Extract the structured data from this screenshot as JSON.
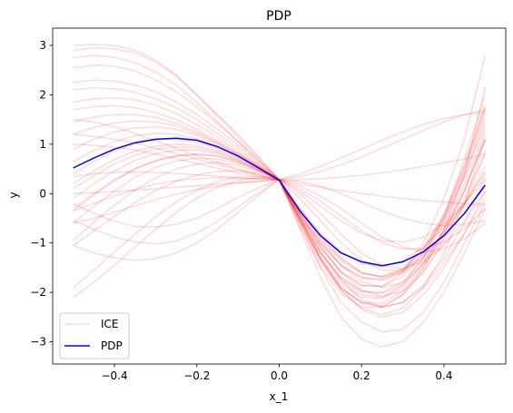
{
  "chart_data": {
    "type": "line",
    "title": "PDP",
    "xlabel": "x_1",
    "ylabel": "y",
    "xlim": [
      -0.55,
      0.55
    ],
    "ylim": [
      -3.45,
      3.35
    ],
    "xticks": [
      -0.4,
      -0.2,
      0.0,
      0.2,
      0.4
    ],
    "xtick_labels": [
      "−0.4",
      "−0.2",
      "0.0",
      "0.2",
      "0.4"
    ],
    "yticks": [
      -3,
      -2,
      -1,
      0,
      1,
      2,
      3
    ],
    "ytick_labels": [
      "−3",
      "−2",
      "−1",
      "0",
      "1",
      "2",
      "3"
    ],
    "grid": false,
    "legend": {
      "placement": "lower-left",
      "entries": [
        "ICE",
        "PDP"
      ]
    },
    "colors": {
      "ice": "#ff0000",
      "pdp": "#0000ff"
    },
    "series": [
      {
        "name": "PDP",
        "x": [
          -0.5,
          -0.45,
          -0.4,
          -0.35,
          -0.3,
          -0.25,
          -0.2,
          -0.15,
          -0.1,
          -0.05,
          0.0,
          0.05,
          0.1,
          0.15,
          0.2,
          0.25,
          0.3,
          0.35,
          0.4,
          0.45,
          0.5
        ],
        "y": [
          0.52,
          0.72,
          0.9,
          1.03,
          1.1,
          1.12,
          1.08,
          0.95,
          0.76,
          0.52,
          0.27,
          -0.35,
          -0.85,
          -1.2,
          -1.38,
          -1.46,
          -1.38,
          -1.18,
          -0.85,
          -0.4,
          0.17
        ]
      }
    ],
    "ice_series": {
      "name": "ICE",
      "x": [
        -0.5,
        -0.45,
        -0.4,
        -0.35,
        -0.3,
        -0.25,
        -0.2,
        -0.15,
        -0.1,
        -0.05,
        0.0,
        0.05,
        0.1,
        0.15,
        0.2,
        0.25,
        0.3,
        0.35,
        0.4,
        0.45,
        0.5
      ],
      "y": [
        [
          3.0,
          3.02,
          3.0,
          2.9,
          2.7,
          2.4,
          2.0,
          1.6,
          1.2,
          0.75,
          0.28,
          -0.5,
          -1.3,
          -1.9,
          -2.2,
          -2.3,
          -2.2,
          -1.9,
          -1.4,
          -0.8,
          -0.1
        ],
        [
          2.9,
          2.95,
          2.93,
          2.85,
          2.66,
          2.38,
          2.0,
          1.58,
          1.15,
          0.72,
          0.28,
          -0.6,
          -1.5,
          -2.2,
          -2.6,
          -2.8,
          -2.75,
          -2.4,
          -1.8,
          -1.0,
          -0.2
        ],
        [
          2.75,
          2.8,
          2.76,
          2.65,
          2.46,
          2.2,
          1.85,
          1.45,
          1.05,
          0.68,
          0.28,
          -0.7,
          -1.7,
          -2.5,
          -2.95,
          -3.1,
          -3.0,
          -2.6,
          -2.0,
          -1.2,
          -0.3
        ],
        [
          2.25,
          2.3,
          2.28,
          2.2,
          2.06,
          1.86,
          1.6,
          1.3,
          0.98,
          0.64,
          0.28,
          -0.5,
          -1.3,
          -1.95,
          -2.35,
          -2.5,
          -2.4,
          -2.05,
          -1.5,
          -0.8,
          0.05
        ],
        [
          2.1,
          2.14,
          2.12,
          2.05,
          1.92,
          1.74,
          1.5,
          1.22,
          0.92,
          0.6,
          0.28,
          -0.45,
          -1.15,
          -1.75,
          -2.15,
          -2.3,
          -2.2,
          -1.85,
          -1.3,
          -0.6,
          0.3
        ],
        [
          1.7,
          1.76,
          1.78,
          1.74,
          1.64,
          1.5,
          1.3,
          1.07,
          0.82,
          0.56,
          0.28,
          -0.4,
          -1.05,
          -1.6,
          -1.95,
          -2.08,
          -1.98,
          -1.6,
          -1.0,
          -0.2,
          0.8
        ],
        [
          1.45,
          1.55,
          1.6,
          1.6,
          1.54,
          1.42,
          1.25,
          1.04,
          0.8,
          0.55,
          0.28,
          -0.35,
          -0.95,
          -1.45,
          -1.78,
          -1.9,
          -1.8,
          -1.4,
          -0.75,
          0.1,
          1.1
        ],
        [
          1.2,
          1.34,
          1.43,
          1.47,
          1.45,
          1.37,
          1.22,
          1.02,
          0.79,
          0.54,
          0.28,
          -0.3,
          -0.85,
          -1.3,
          -1.6,
          -1.7,
          -1.58,
          -1.2,
          -0.55,
          0.35,
          1.4
        ],
        [
          0.9,
          1.1,
          1.25,
          1.33,
          1.35,
          1.3,
          1.18,
          1.0,
          0.78,
          0.54,
          0.28,
          -0.32,
          -0.88,
          -1.32,
          -1.6,
          -1.68,
          -1.54,
          -1.15,
          -0.5,
          0.45,
          1.6
        ],
        [
          0.65,
          0.87,
          1.05,
          1.17,
          1.22,
          1.2,
          1.11,
          0.96,
          0.76,
          0.53,
          0.28,
          -0.35,
          -0.92,
          -1.36,
          -1.62,
          -1.68,
          -1.52,
          -1.1,
          -0.45,
          0.55,
          1.75
        ],
        [
          0.4,
          0.65,
          0.86,
          1.01,
          1.09,
          1.1,
          1.04,
          0.91,
          0.73,
          0.51,
          0.28,
          -0.4,
          -1.0,
          -1.45,
          -1.7,
          -1.74,
          -1.56,
          -1.12,
          -0.42,
          0.6,
          1.8
        ],
        [
          0.2,
          0.46,
          0.69,
          0.86,
          0.96,
          1.0,
          0.97,
          0.87,
          0.71,
          0.5,
          0.28,
          -0.45,
          -1.1,
          -1.58,
          -1.85,
          -1.88,
          -1.68,
          -1.22,
          -0.5,
          0.5,
          1.7
        ],
        [
          -0.1,
          0.2,
          0.46,
          0.67,
          0.81,
          0.88,
          0.88,
          0.81,
          0.67,
          0.48,
          0.28,
          -0.5,
          -1.2,
          -1.7,
          -1.98,
          -2.0,
          -1.78,
          -1.3,
          -0.6,
          0.35,
          1.5
        ],
        [
          -0.35,
          -0.03,
          0.26,
          0.5,
          0.67,
          0.77,
          0.8,
          0.76,
          0.64,
          0.47,
          0.28,
          -0.55,
          -1.3,
          -1.82,
          -2.1,
          -2.12,
          -1.9,
          -1.42,
          -0.72,
          0.2,
          1.3
        ],
        [
          -0.6,
          -0.26,
          0.06,
          0.33,
          0.53,
          0.66,
          0.72,
          0.7,
          0.61,
          0.46,
          0.28,
          -0.6,
          -1.38,
          -1.92,
          -2.2,
          -2.22,
          -1.98,
          -1.5,
          -0.82,
          0.05,
          1.1
        ],
        [
          -0.95,
          -0.58,
          -0.24,
          0.07,
          0.32,
          0.5,
          0.6,
          0.63,
          0.57,
          0.44,
          0.28,
          -0.68,
          -1.48,
          -2.02,
          -2.3,
          -2.3,
          -2.05,
          -1.58,
          -0.92,
          -0.1,
          0.85
        ],
        [
          -1.05,
          -0.75,
          -0.46,
          -0.18,
          0.06,
          0.25,
          0.38,
          0.45,
          0.46,
          0.4,
          0.28,
          -0.5,
          -1.2,
          -1.7,
          -1.98,
          -2.02,
          -1.84,
          -1.44,
          -0.88,
          -0.2,
          0.55
        ],
        [
          -1.9,
          -1.55,
          -1.18,
          -0.82,
          -0.47,
          -0.17,
          0.07,
          0.24,
          0.34,
          0.35,
          0.28,
          -0.4,
          -1.0,
          -1.45,
          -1.7,
          -1.76,
          -1.6,
          -1.26,
          -0.78,
          -0.2,
          0.45
        ],
        [
          -2.1,
          -1.8,
          -1.45,
          -1.08,
          -0.72,
          -0.38,
          -0.09,
          0.13,
          0.27,
          0.32,
          0.28,
          -0.3,
          -0.8,
          -1.18,
          -1.42,
          -1.48,
          -1.36,
          -1.08,
          -0.68,
          -0.2,
          0.3
        ],
        [
          -1.05,
          -1.2,
          -1.3,
          -1.35,
          -1.32,
          -1.2,
          -1.0,
          -0.72,
          -0.38,
          -0.03,
          0.28,
          0.0,
          -0.4,
          -0.82,
          -1.2,
          -1.45,
          -1.52,
          -1.38,
          -1.05,
          -0.55,
          0.05
        ],
        [
          -0.55,
          -0.72,
          -0.88,
          -0.98,
          -1.02,
          -0.96,
          -0.8,
          -0.56,
          -0.27,
          0.02,
          0.28,
          0.15,
          -0.05,
          -0.3,
          -0.6,
          -0.88,
          -1.08,
          -1.18,
          -1.12,
          -0.92,
          -0.6
        ],
        [
          -0.2,
          -0.4,
          -0.56,
          -0.66,
          -0.68,
          -0.62,
          -0.5,
          -0.3,
          -0.08,
          0.12,
          0.28,
          0.1,
          -0.15,
          -0.45,
          -0.75,
          -1.0,
          -1.12,
          -1.12,
          -0.98,
          -0.7,
          -0.3
        ],
        [
          1.5,
          1.45,
          1.35,
          1.22,
          1.07,
          0.92,
          0.77,
          0.63,
          0.5,
          0.38,
          0.28,
          0.2,
          0.13,
          0.06,
          0.0,
          -0.05,
          -0.1,
          -0.14,
          -0.17,
          -0.2,
          -0.22
        ],
        [
          1.2,
          1.16,
          1.1,
          1.02,
          0.92,
          0.81,
          0.7,
          0.59,
          0.48,
          0.37,
          0.28,
          0.28,
          0.3,
          0.33,
          0.37,
          0.42,
          0.48,
          0.55,
          0.62,
          0.7,
          0.8
        ],
        [
          0.35,
          0.4,
          0.43,
          0.44,
          0.43,
          0.41,
          0.38,
          0.35,
          0.32,
          0.3,
          0.28,
          0.35,
          0.45,
          0.58,
          0.74,
          0.92,
          1.1,
          1.28,
          1.45,
          1.6,
          1.7
        ],
        [
          -0.6,
          -0.5,
          -0.38,
          -0.25,
          -0.12,
          -0.01,
          0.08,
          0.15,
          0.21,
          0.25,
          0.28,
          0.4,
          0.55,
          0.72,
          0.9,
          1.08,
          1.25,
          1.4,
          1.52,
          1.6,
          1.65
        ],
        [
          0.0,
          0.02,
          0.04,
          0.07,
          0.1,
          0.13,
          0.16,
          0.19,
          0.22,
          0.25,
          0.28,
          0.25,
          0.15,
          0.0,
          -0.18,
          -0.35,
          -0.5,
          -0.6,
          -0.65,
          -0.62,
          -0.55
        ],
        [
          1.0,
          0.98,
          0.94,
          0.88,
          0.8,
          0.71,
          0.61,
          0.51,
          0.42,
          0.34,
          0.28,
          0.05,
          -0.25,
          -0.55,
          -0.8,
          -0.95,
          -0.98,
          -0.88,
          -0.62,
          -0.2,
          0.4
        ],
        [
          -0.35,
          -0.2,
          -0.05,
          0.08,
          0.19,
          0.26,
          0.3,
          0.32,
          0.31,
          0.3,
          0.28,
          -0.1,
          -0.55,
          -1.0,
          -1.35,
          -1.55,
          -1.55,
          -1.3,
          -0.8,
          0.05,
          1.2
        ],
        [
          2.55,
          2.6,
          2.58,
          2.48,
          2.3,
          2.06,
          1.76,
          1.42,
          1.06,
          0.67,
          0.28,
          -0.55,
          -1.35,
          -1.95,
          -2.32,
          -2.45,
          -2.32,
          -1.9,
          -1.2,
          -0.2,
          1.1
        ],
        [
          1.85,
          1.92,
          1.94,
          1.9,
          1.79,
          1.62,
          1.4,
          1.14,
          0.86,
          0.57,
          0.28,
          -0.48,
          -1.2,
          -1.75,
          -2.05,
          -2.1,
          -1.85,
          -1.3,
          -0.45,
          0.7,
          2.0
        ],
        [
          0.1,
          0.36,
          0.6,
          0.78,
          0.9,
          0.95,
          0.93,
          0.84,
          0.68,
          0.49,
          0.28,
          -0.55,
          -1.32,
          -1.9,
          -2.22,
          -2.28,
          -2.05,
          -1.52,
          -0.72,
          0.4,
          2.15
        ],
        [
          -0.3,
          0.0,
          0.28,
          0.5,
          0.66,
          0.76,
          0.79,
          0.76,
          0.65,
          0.48,
          0.28,
          -0.42,
          -1.08,
          -1.58,
          -1.86,
          -1.88,
          -1.6,
          -1.0,
          -0.1,
          1.1,
          2.8
        ]
      ]
    }
  }
}
